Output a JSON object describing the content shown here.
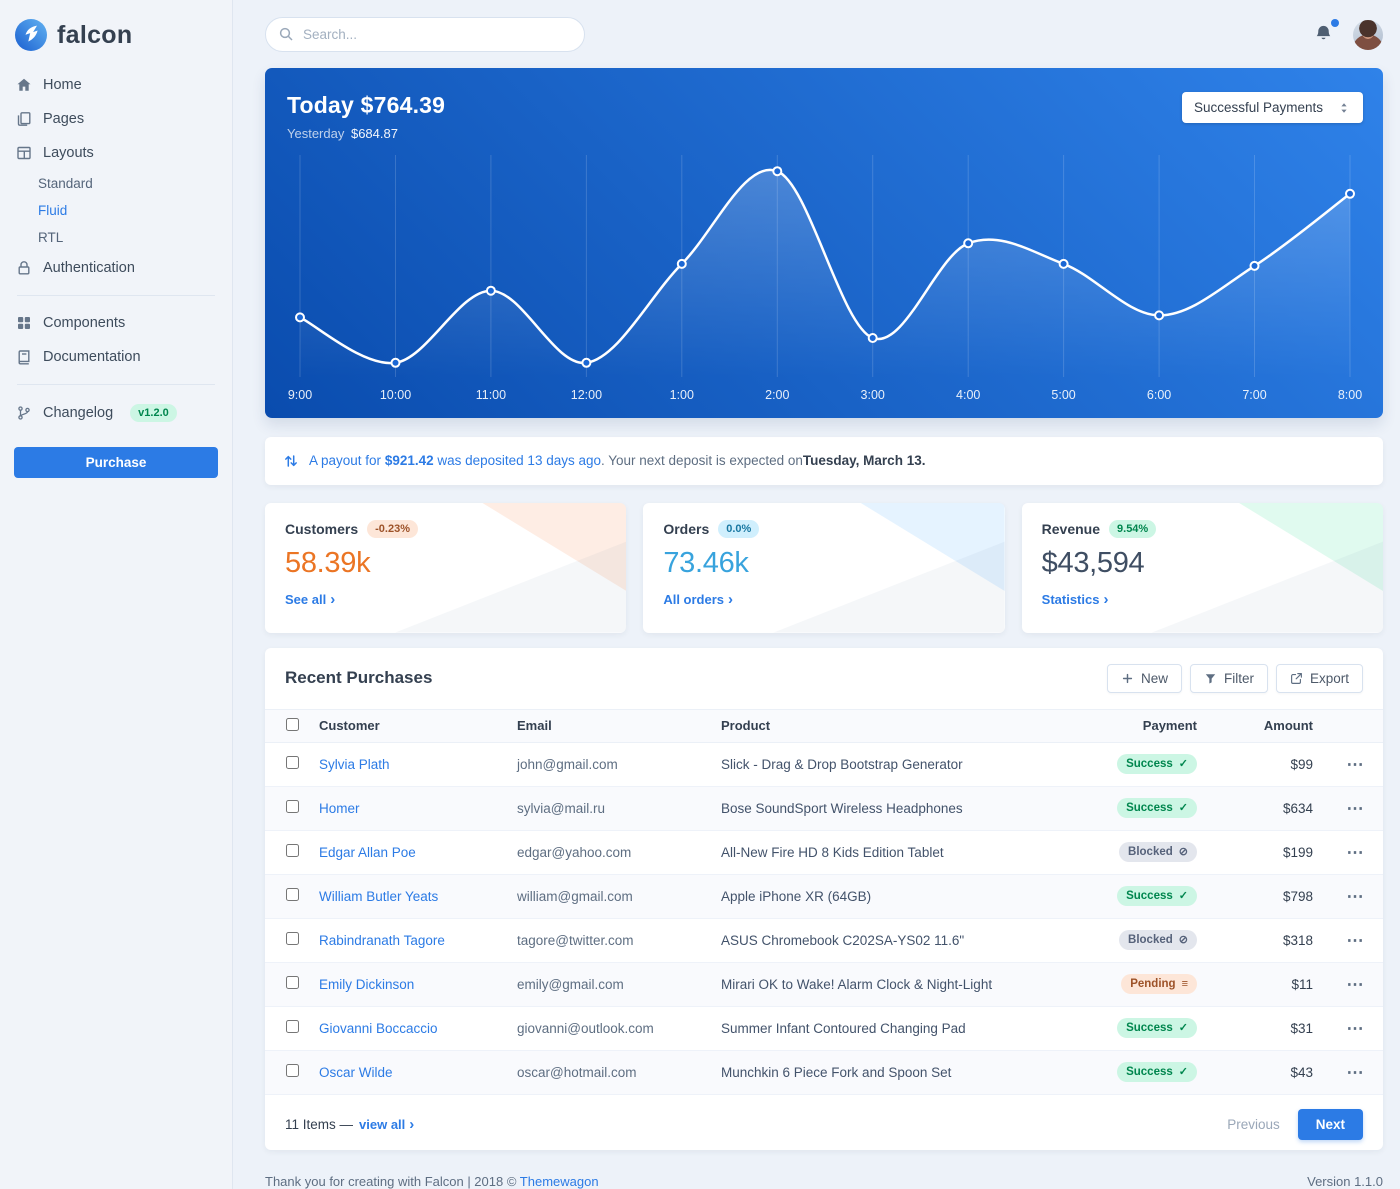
{
  "colors": {
    "accent": "#2c7be5",
    "warning_value": "#eb7524",
    "info_value": "#38a3dd",
    "dark_value": "#3f4e63",
    "success_badge_bg": "#ccf6e4",
    "success_badge_text": "#00864e",
    "blocked_badge_bg": "#e3e6ed",
    "blocked_badge_text": "#56627a",
    "pending_badge_bg": "#fde6d8",
    "pending_badge_text": "#9d5228",
    "warning_badge_bg": "#fde6d8",
    "warning_badge_text": "#9d5228",
    "info_badge_bg": "#d0effd",
    "info_badge_text": "#1978a2",
    "chart_grad_start": "#0a4cae",
    "chart_grad_end": "#2f82e9"
  },
  "sidebar": {
    "logo_text": "falcon",
    "items": {
      "home": "Home",
      "pages": "Pages",
      "layouts": "Layouts",
      "layouts_children": [
        "Standard",
        "Fluid",
        "RTL"
      ],
      "layouts_active_child": "Fluid",
      "authentication": "Authentication",
      "components": "Components",
      "documentation": "Documentation",
      "changelog": "Changelog",
      "changelog_badge": "v1.2.0"
    },
    "purchase_label": "Purchase"
  },
  "topbar": {
    "search_placeholder": "Search..."
  },
  "payments_card": {
    "today_label": "Today",
    "today_value": "$764.39",
    "yesterday_label": "Yesterday",
    "yesterday_value": "$684.87",
    "dropdown_value": "Successful Payments"
  },
  "chart_data": {
    "type": "line",
    "title": "Today's successful payments by hour",
    "categories": [
      "9:00",
      "10:00",
      "11:00",
      "12:00",
      "1:00",
      "2:00",
      "3:00",
      "4:00",
      "5:00",
      "6:00",
      "7:00",
      "8:00"
    ],
    "series": [
      {
        "name": "Successful Payments",
        "values": [
          26,
          4,
          39,
          4,
          52,
          97,
          16,
          62,
          52,
          27,
          51,
          86
        ]
      }
    ],
    "ylim": [
      0,
      100
    ],
    "xlabel": "",
    "ylabel": "",
    "grid": "vertical",
    "line_color": "#ffffff",
    "legend_position": "none"
  },
  "payout_banner": {
    "link_prefix": "A payout for ",
    "amount": "$921.42",
    "link_suffix": " was deposited 13 days ago",
    "rest": ". Your next deposit is expected on ",
    "date": "Tuesday, March 13."
  },
  "stats": [
    {
      "title": "Customers",
      "badge": "-0.23%",
      "badge_variant": "warning",
      "value": "58.39k",
      "link": "See all"
    },
    {
      "title": "Orders",
      "badge": "0.0%",
      "badge_variant": "info",
      "value": "73.46k",
      "link": "All orders"
    },
    {
      "title": "Revenue",
      "badge": "9.54%",
      "badge_variant": "success",
      "value": "$43,594",
      "link": "Statistics"
    }
  ],
  "purchases": {
    "title": "Recent Purchases",
    "actions": {
      "new": "New",
      "filter": "Filter",
      "export": "Export"
    },
    "columns": [
      "Customer",
      "Email",
      "Product",
      "Payment",
      "Amount"
    ],
    "rows": [
      {
        "customer": "Sylvia Plath",
        "email": "john@gmail.com",
        "product": "Slick - Drag & Drop Bootstrap Generator",
        "payment": {
          "label": "Success",
          "variant": "success",
          "icon": "check-icon"
        },
        "amount": "$99"
      },
      {
        "customer": "Homer",
        "email": "sylvia@mail.ru",
        "product": "Bose SoundSport Wireless Headphones",
        "payment": {
          "label": "Success",
          "variant": "success",
          "icon": "check-icon"
        },
        "amount": "$634"
      },
      {
        "customer": "Edgar Allan Poe",
        "email": "edgar@yahoo.com",
        "product": "All-New Fire HD 8 Kids Edition Tablet",
        "payment": {
          "label": "Blocked",
          "variant": "blocked",
          "icon": "ban-icon"
        },
        "amount": "$199"
      },
      {
        "customer": "William Butler Yeats",
        "email": "william@gmail.com",
        "product": "Apple iPhone XR (64GB)",
        "payment": {
          "label": "Success",
          "variant": "success",
          "icon": "check-icon"
        },
        "amount": "$798"
      },
      {
        "customer": "Rabindranath Tagore",
        "email": "tagore@twitter.com",
        "product": "ASUS Chromebook C202SA-YS02 11.6\"",
        "payment": {
          "label": "Blocked",
          "variant": "blocked",
          "icon": "ban-icon"
        },
        "amount": "$318"
      },
      {
        "customer": "Emily Dickinson",
        "email": "emily@gmail.com",
        "product": "Mirari OK to Wake! Alarm Clock & Night-Light",
        "payment": {
          "label": "Pending",
          "variant": "pending",
          "icon": "stream-icon"
        },
        "amount": "$11"
      },
      {
        "customer": "Giovanni Boccaccio",
        "email": "giovanni@outlook.com",
        "product": "Summer Infant Contoured Changing Pad",
        "payment": {
          "label": "Success",
          "variant": "success",
          "icon": "check-icon"
        },
        "amount": "$31"
      },
      {
        "customer": "Oscar Wilde",
        "email": "oscar@hotmail.com",
        "product": "Munchkin 6 Piece Fork and Spoon Set",
        "payment": {
          "label": "Success",
          "variant": "success",
          "icon": "check-icon"
        },
        "amount": "$43"
      }
    ],
    "footer": {
      "items_label": "11 Items —",
      "view_all": "view all",
      "previous": "Previous",
      "next": "Next"
    }
  },
  "page_footer": {
    "thanks_prefix": "Thank you for creating with Falcon | 2018 © ",
    "brand_link": "Themewagon",
    "version": "Version 1.1.0"
  }
}
